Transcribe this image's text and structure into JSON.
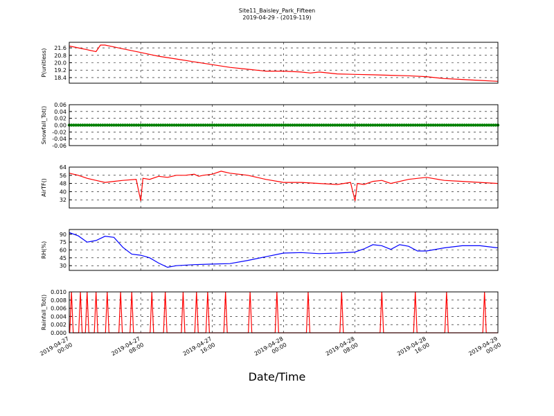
{
  "figure": {
    "title": "Site11_Baisley_Park_Fifteen",
    "subtitle": "2019-04-29 - (2019-119)",
    "xlabel": "Date/Time"
  },
  "chart_data": [
    {
      "type": "line",
      "ylabel": "P(unitless)",
      "ylim": [
        17.8,
        22.2
      ],
      "yticks": [
        "21.6",
        "20.8",
        "20.0",
        "19.2",
        "18.4"
      ],
      "color": "#ff0000",
      "x_axis": {
        "start": "2019-04-27 00:00",
        "end": "2019-04-29 00:00",
        "ticks": [
          "2019-04-27\n00:00",
          "2019-04-27\n08:00",
          "2019-04-27\n16:00",
          "2019-04-28\n00:00",
          "2019-04-28\n08:00",
          "2019-04-28\n16:00",
          "2019-04-29\n00:00"
        ]
      },
      "grid": true,
      "x": [
        "2019-04-27 00:00",
        "2019-04-27 01:00",
        "2019-04-27 02:00",
        "2019-04-27 03:00",
        "2019-04-27 03:30",
        "2019-04-27 04:00",
        "2019-04-27 05:00",
        "2019-04-27 06:00",
        "2019-04-27 07:00",
        "2019-04-27 08:00",
        "2019-04-27 09:00",
        "2019-04-27 10:00",
        "2019-04-27 12:00",
        "2019-04-27 14:00",
        "2019-04-27 16:00",
        "2019-04-27 18:00",
        "2019-04-27 20:00",
        "2019-04-27 22:00",
        "2019-04-28 00:00",
        "2019-04-28 02:00",
        "2019-04-28 03:00",
        "2019-04-28 04:00",
        "2019-04-28 06:00",
        "2019-04-28 08:00",
        "2019-04-28 10:00",
        "2019-04-28 12:00",
        "2019-04-28 14:00",
        "2019-04-28 16:00",
        "2019-04-28 18:00",
        "2019-04-28 20:00",
        "2019-04-28 22:00",
        "2019-04-29 00:00"
      ],
      "y": [
        21.8,
        21.6,
        21.4,
        21.2,
        21.9,
        21.9,
        21.7,
        21.5,
        21.3,
        21.1,
        20.9,
        20.7,
        20.4,
        20.1,
        19.8,
        19.5,
        19.3,
        19.1,
        19.1,
        19.0,
        18.9,
        19.0,
        18.8,
        18.75,
        18.7,
        18.65,
        18.6,
        18.5,
        18.3,
        18.2,
        18.1,
        18.0
      ]
    },
    {
      "type": "scatter",
      "ylabel": "Snowfall_Tot()",
      "ylim": [
        -0.06,
        0.06
      ],
      "yticks": [
        "0.06",
        "0.04",
        "0.02",
        "0.00",
        "-0.02",
        "-0.04",
        "-0.06"
      ],
      "color": "#008000",
      "x_axis": {
        "start": "2019-04-27 00:00",
        "end": "2019-04-29 00:00",
        "ticks": [
          "2019-04-27\n00:00",
          "2019-04-27\n08:00",
          "2019-04-27\n16:00",
          "2019-04-28\n00:00",
          "2019-04-28\n08:00",
          "2019-04-28\n16:00",
          "2019-04-29\n00:00"
        ]
      },
      "grid": true,
      "x": [
        "2019-04-27 00:00",
        "2019-04-29 00:00"
      ],
      "y": [
        0.0,
        0.0
      ],
      "note_values": "constant 0.00 at every 15-minute sample"
    },
    {
      "type": "line",
      "ylabel": "AirTF()",
      "ylim": [
        24,
        64
      ],
      "yticks": [
        "64",
        "56",
        "48",
        "40",
        "32"
      ],
      "color": "#ff0000",
      "x_axis": {
        "start": "2019-04-27 00:00",
        "end": "2019-04-29 00:00",
        "ticks": [
          "2019-04-27\n00:00",
          "2019-04-27\n08:00",
          "2019-04-27\n16:00",
          "2019-04-28\n00:00",
          "2019-04-28\n08:00",
          "2019-04-28\n16:00",
          "2019-04-29\n00:00"
        ]
      },
      "grid": true,
      "x": [
        "2019-04-27 00:00",
        "2019-04-27 01:00",
        "2019-04-27 02:00",
        "2019-04-27 03:00",
        "2019-04-27 04:00",
        "2019-04-27 05:00",
        "2019-04-27 06:00",
        "2019-04-27 07:30",
        "2019-04-27 08:00",
        "2019-04-27 08:15",
        "2019-04-27 09:00",
        "2019-04-27 10:00",
        "2019-04-27 11:00",
        "2019-04-27 12:00",
        "2019-04-27 13:00",
        "2019-04-27 14:00",
        "2019-04-27 14:30",
        "2019-04-27 15:00",
        "2019-04-27 16:00",
        "2019-04-27 17:00",
        "2019-04-27 18:00",
        "2019-04-27 20:00",
        "2019-04-27 22:00",
        "2019-04-28 00:00",
        "2019-04-28 02:00",
        "2019-04-28 04:00",
        "2019-04-28 06:00",
        "2019-04-28 07:30",
        "2019-04-28 08:00",
        "2019-04-28 08:15",
        "2019-04-28 09:00",
        "2019-04-28 10:00",
        "2019-04-28 11:00",
        "2019-04-28 12:00",
        "2019-04-28 14:00",
        "2019-04-28 16:00",
        "2019-04-28 18:00",
        "2019-04-28 20:00",
        "2019-04-28 22:00",
        "2019-04-29 00:00"
      ],
      "y": [
        58,
        56,
        53,
        51,
        49,
        50,
        51,
        52,
        31,
        53,
        52,
        55,
        54,
        56,
        56,
        57,
        55,
        56,
        57,
        60,
        58,
        56,
        52,
        49,
        49,
        48,
        47,
        49,
        31,
        48,
        47,
        50,
        51,
        48,
        52,
        54,
        51,
        50,
        49,
        48
      ]
    },
    {
      "type": "line",
      "ylabel": "RH(%)",
      "ylim": [
        21,
        99
      ],
      "yticks": [
        "90",
        "75",
        "60",
        "45",
        "30"
      ],
      "color": "#0000ff",
      "x_axis": {
        "start": "2019-04-27 00:00",
        "end": "2019-04-29 00:00",
        "ticks": [
          "2019-04-27\n00:00",
          "2019-04-27\n08:00",
          "2019-04-27\n16:00",
          "2019-04-28\n00:00",
          "2019-04-28\n08:00",
          "2019-04-28\n16:00",
          "2019-04-29\n00:00"
        ]
      },
      "grid": true,
      "x": [
        "2019-04-27 00:00",
        "2019-04-27 01:00",
        "2019-04-27 02:00",
        "2019-04-27 03:00",
        "2019-04-27 04:00",
        "2019-04-27 05:00",
        "2019-04-27 06:00",
        "2019-04-27 07:00",
        "2019-04-27 08:00",
        "2019-04-27 09:00",
        "2019-04-27 10:00",
        "2019-04-27 11:00",
        "2019-04-27 12:00",
        "2019-04-27 14:00",
        "2019-04-27 16:00",
        "2019-04-27 18:00",
        "2019-04-27 20:00",
        "2019-04-27 22:00",
        "2019-04-28 00:00",
        "2019-04-28 02:00",
        "2019-04-28 04:00",
        "2019-04-28 06:00",
        "2019-04-28 08:00",
        "2019-04-28 09:00",
        "2019-04-28 10:00",
        "2019-04-28 11:00",
        "2019-04-28 12:00",
        "2019-04-28 13:00",
        "2019-04-28 14:00",
        "2019-04-28 15:00",
        "2019-04-28 16:00",
        "2019-04-28 18:00",
        "2019-04-28 20:00",
        "2019-04-28 22:00",
        "2019-04-29 00:00"
      ],
      "y": [
        93,
        87,
        75,
        78,
        86,
        84,
        65,
        52,
        50,
        45,
        35,
        27,
        30,
        32,
        33,
        34,
        40,
        47,
        54,
        55,
        53,
        54,
        56,
        62,
        70,
        68,
        61,
        70,
        67,
        58,
        58,
        64,
        68,
        68,
        64
      ]
    },
    {
      "type": "line",
      "ylabel": "Rainfall_Tot()",
      "ylim": [
        0.0,
        0.01
      ],
      "yticks": [
        "0.010",
        "0.008",
        "0.006",
        "0.004",
        "0.002",
        "0.000"
      ],
      "color": "#ff0000",
      "x_axis": {
        "start": "2019-04-27 00:00",
        "end": "2019-04-29 00:00",
        "ticks": [
          "2019-04-27\n00:00",
          "2019-04-27\n08:00",
          "2019-04-27\n16:00",
          "2019-04-28\n00:00",
          "2019-04-28\n08:00",
          "2019-04-28\n16:00",
          "2019-04-29\n00:00"
        ]
      },
      "grid": true,
      "spikes_at": [
        "2019-04-27 00:15",
        "2019-04-27 01:15",
        "2019-04-27 02:00",
        "2019-04-27 03:00",
        "2019-04-27 04:15",
        "2019-04-27 05:45",
        "2019-04-27 07:00",
        "2019-04-27 09:15",
        "2019-04-27 10:45",
        "2019-04-27 12:45",
        "2019-04-27 14:15",
        "2019-04-27 15:30",
        "2019-04-27 17:30",
        "2019-04-27 20:15",
        "2019-04-27 23:15",
        "2019-04-28 02:45",
        "2019-04-28 06:30",
        "2019-04-28 11:00",
        "2019-04-28 14:45",
        "2019-04-28 18:15",
        "2019-04-28 22:30"
      ],
      "spike_value": 0.01,
      "baseline": 0.0
    }
  ]
}
